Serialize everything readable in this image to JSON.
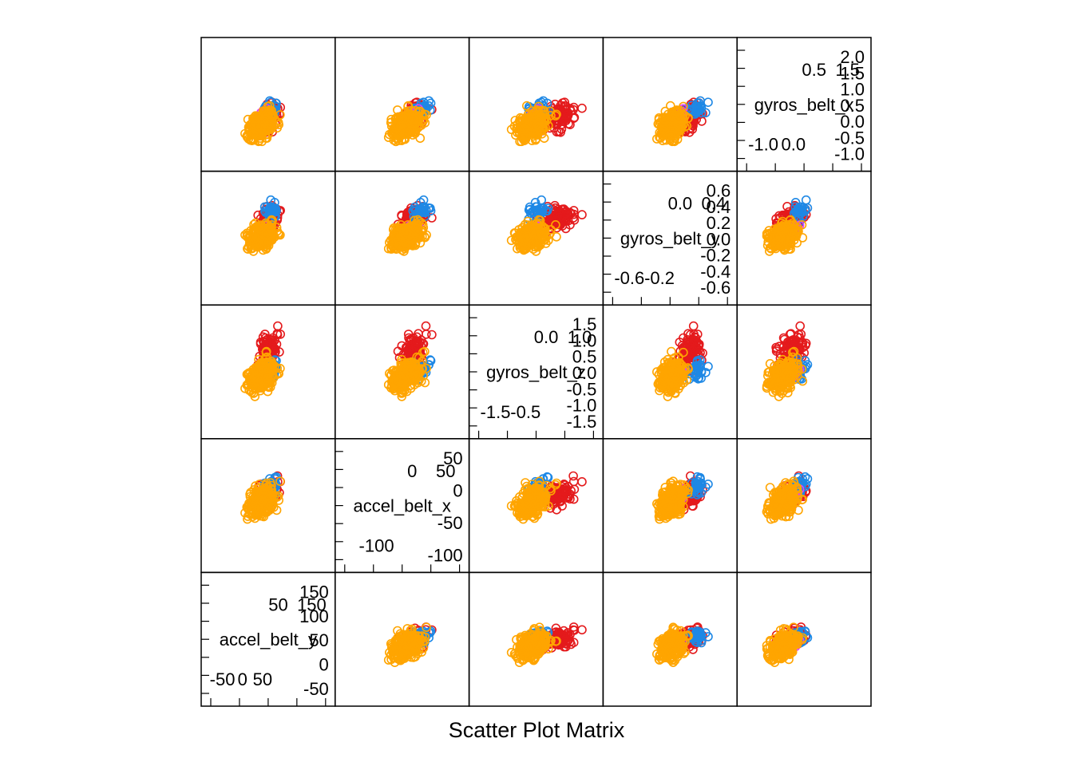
{
  "chart_data": {
    "type": "scatter",
    "title": "Scatter Plot Matrix",
    "variables": [
      "gyros_belt_x",
      "gyros_belt_y",
      "gyros_belt_z",
      "accel_belt_x",
      "accel_belt_y"
    ],
    "variable_ranges": {
      "gyros_belt_x": [
        -1.1,
        2.3
      ],
      "gyros_belt_y": [
        -0.7,
        0.7
      ],
      "gyros_belt_z": [
        -1.6,
        1.7
      ],
      "accel_belt_x": [
        -125,
        90
      ],
      "accel_belt_y": [
        -70,
        175
      ]
    },
    "diagonal_ticks": [
      {
        "variable": "gyros_belt_x",
        "lower_top": [
          "-1.0",
          "0.0"
        ],
        "upper_top": [
          "0.5",
          "1.5"
        ],
        "upper_right": [
          "2.0",
          "1.5",
          "1.0",
          "0.5",
          "0.0",
          "-0.5",
          "-1.0"
        ]
      },
      {
        "variable": "gyros_belt_y",
        "lower_top": [
          "-0.6",
          "-0.2"
        ],
        "upper_top": [
          "0.0",
          "0.4"
        ],
        "upper_right": [
          "0.6",
          "0.4",
          "0.2",
          "0.0",
          "-0.2",
          "-0.4",
          "-0.6"
        ]
      },
      {
        "variable": "gyros_belt_z",
        "lower_top": [
          "-1.5",
          "-0.5"
        ],
        "upper_top": [
          "0.0",
          "1.0"
        ],
        "upper_right": [
          "1.5",
          "1.0",
          "0.5",
          "0.0",
          "-0.5",
          "-1.0",
          "-1.5"
        ]
      },
      {
        "variable": "accel_belt_x",
        "lower_top": [
          "-100"
        ],
        "upper_top": [
          "0",
          "50"
        ],
        "upper_right": [
          "50",
          "0",
          "-50",
          "-100"
        ]
      },
      {
        "variable": "accel_belt_y",
        "lower_top": [
          "-50",
          "0",
          "50"
        ],
        "upper_top": [
          "50",
          "150"
        ],
        "upper_right": [
          "150",
          "100",
          "50",
          "0",
          "-50"
        ]
      }
    ],
    "groups": [
      {
        "color": "#E41A1C"
      },
      {
        "color": "#1E88E5"
      },
      {
        "color": "#E040FB"
      },
      {
        "color": "#FFA500"
      }
    ],
    "grid": false,
    "legend": "none"
  }
}
